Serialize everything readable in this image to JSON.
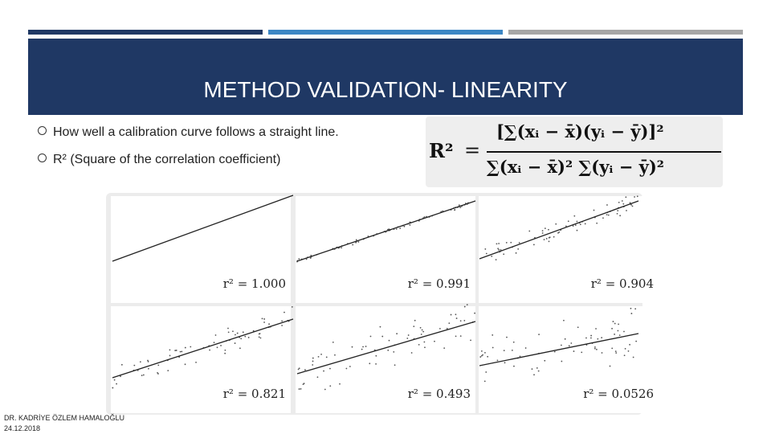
{
  "header": {
    "title": "METHOD VALIDATION- LINEARITY"
  },
  "bullets": [
    "How well a calibration curve follows a straight line.",
    "R² (Square of the correlation coefficient)"
  ],
  "formula": {
    "lhs": "R²",
    "equals": "=",
    "numerator": "[∑(xᵢ − x̄)(yᵢ − ȳ)]²",
    "denominator": "∑(xᵢ − x̄)² ∑(yᵢ − ȳ)²"
  },
  "panels": [
    {
      "label": "r² = 1.000"
    },
    {
      "label": "r² = 0.991"
    },
    {
      "label": "r² = 0.904"
    },
    {
      "label": "r² = 0.821"
    },
    {
      "label": "r² = 0.493"
    },
    {
      "label": "r² = 0.0526"
    }
  ],
  "footer": {
    "author": "DR. KADRİYE ÖZLEM HAMALOĞLU",
    "date": "24.12.2018"
  }
}
